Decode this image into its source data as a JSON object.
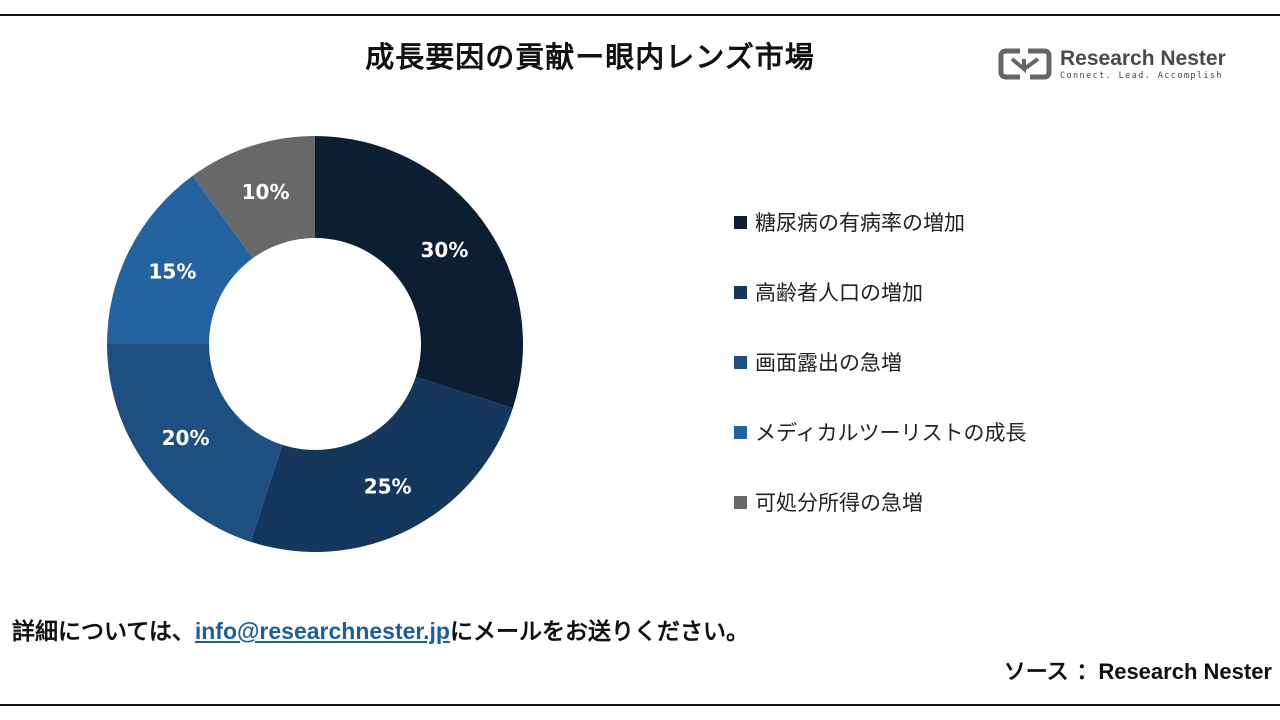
{
  "chart_data": {
    "type": "pie",
    "title": "成長要因の貢献ー眼内レンズ市場",
    "donut": true,
    "legend_position": "right",
    "slices": [
      {
        "label": "糖尿病の有病率の増加",
        "value": 30,
        "display": "30%",
        "color": "#0c1e31"
      },
      {
        "label": "高齢者人口の増加",
        "value": 25,
        "display": "25%",
        "color": "#14375b"
      },
      {
        "label": "画面露出の急増",
        "value": 20,
        "display": "20%",
        "color": "#1d4f80"
      },
      {
        "label": "メディカルツーリストの成長",
        "value": 15,
        "display": "15%",
        "color": "#2563a0"
      },
      {
        "label": "可処分所得の急増",
        "value": 10,
        "display": "10%",
        "color": "#686868"
      }
    ]
  },
  "logo": {
    "name": "Research Nester",
    "tagline": "Connect. Lead. Accomplish",
    "icon": "research-nester-logo-icon"
  },
  "footer": {
    "prefix": "詳細については、",
    "email": "info@researchnester.jp",
    "suffix": "にメールをお送りください。"
  },
  "source": {
    "prefix": "ソース ：",
    "name": "Research Nester"
  }
}
